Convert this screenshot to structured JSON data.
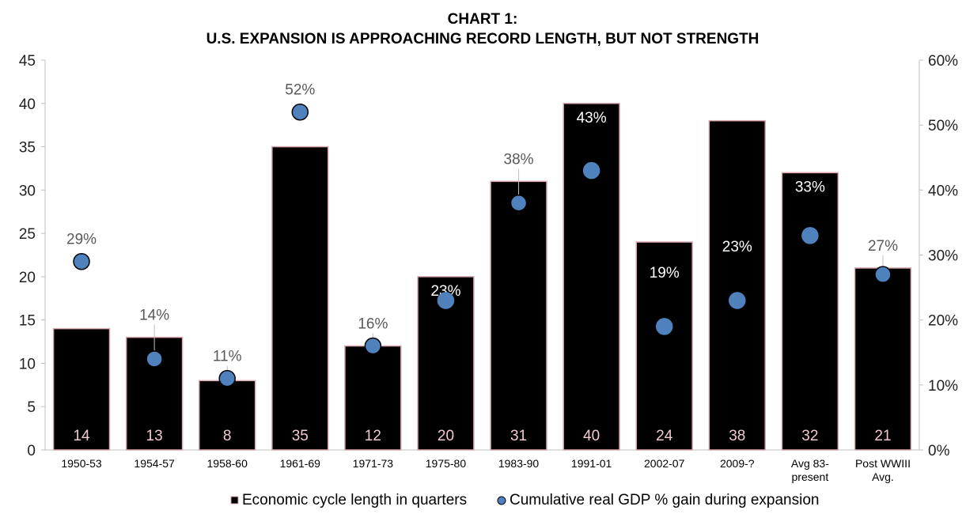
{
  "chart_data": {
    "type": "bar",
    "title_line1": "CHART 1:",
    "title_line2": "U.S. EXPANSION IS APPROACHING RECORD LENGTH, BUT NOT STRENGTH",
    "categories": [
      [
        "1950-53"
      ],
      [
        "1954-57"
      ],
      [
        "1958-60"
      ],
      [
        "1961-69"
      ],
      [
        "1971-73"
      ],
      [
        "1975-80"
      ],
      [
        "1983-90"
      ],
      [
        "1991-01"
      ],
      [
        "2002-07"
      ],
      [
        "2009-?"
      ],
      [
        "Avg 83-",
        "present"
      ],
      [
        "Post WWIII",
        "Avg."
      ]
    ],
    "series": [
      {
        "name": "Economic cycle length in quarters",
        "type": "bar",
        "axis": "left",
        "values": [
          14,
          13,
          8,
          35,
          12,
          20,
          31,
          40,
          24,
          38,
          32,
          21
        ],
        "labels": [
          "14",
          "13",
          "8",
          "35",
          "12",
          "20",
          "31",
          "40",
          "24",
          "38",
          "32",
          "21"
        ],
        "color": "#000000",
        "edge_color": "#d9a7ad"
      },
      {
        "name": "Cumulative real GDP % gain during expansion",
        "type": "scatter",
        "axis": "right",
        "values": [
          29,
          14,
          11,
          52,
          16,
          23,
          38,
          43,
          19,
          23,
          33,
          27
        ],
        "labels": [
          "29%",
          "14%",
          "11%",
          "52%",
          "16%",
          "23%",
          "38%",
          "43%",
          "19%",
          "23%",
          "33%",
          "27%"
        ],
        "color": "#4f81bd"
      }
    ],
    "y_left": {
      "min": 0,
      "max": 45,
      "step": 5,
      "ticks": [
        "0",
        "5",
        "10",
        "15",
        "20",
        "25",
        "30",
        "35",
        "40",
        "45"
      ]
    },
    "y_right": {
      "min": 0,
      "max": 60,
      "step": 10,
      "ticks": [
        "0%",
        "10%",
        "20%",
        "30%",
        "40%",
        "50%",
        "60%"
      ]
    },
    "grid": false,
    "legend_position": "bottom"
  }
}
